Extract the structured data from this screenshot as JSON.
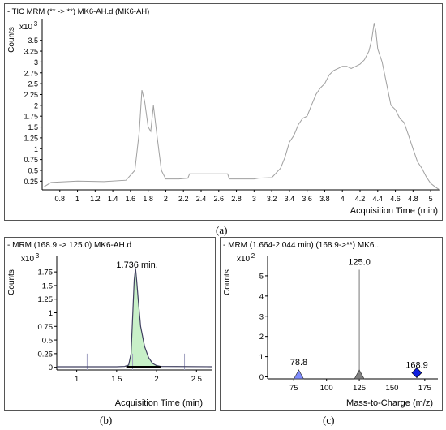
{
  "captions": {
    "a": "(a)",
    "b": "(b)",
    "c": "(c)"
  },
  "chart_data": [
    {
      "id": "a",
      "type": "line",
      "title": "- TIC MRM (** -> **) MK6-AH.d (MK6-AH)",
      "ylabel": "Counts",
      "multiplier": "x10",
      "multiplier_exp": "3",
      "xlabel": "Acquisition Time (min)",
      "xlim": [
        0.6,
        5.1
      ],
      "ylim": [
        0.05,
        4.0
      ],
      "xticks": [
        "0.8",
        "1",
        "1.2",
        "1.4",
        "1.6",
        "1.8",
        "2",
        "2.2",
        "2.4",
        "2.6",
        "2.8",
        "3",
        "3.2",
        "3.4",
        "3.6",
        "3.8",
        "4",
        "4.2",
        "4.4",
        "4.6",
        "4.8",
        "5"
      ],
      "yticks": [
        "0.25",
        "0.5",
        "0.75",
        "1",
        "1.25",
        "1.5",
        "1.75",
        "2",
        "2.25",
        "2.5",
        "2.75",
        "3",
        "3.25",
        "3.5"
      ],
      "color": "#a0a0a0",
      "x": [
        0.62,
        0.7,
        1.0,
        1.3,
        1.55,
        1.65,
        1.7,
        1.73,
        1.76,
        1.8,
        1.83,
        1.86,
        1.9,
        1.95,
        2.0,
        2.15,
        2.25,
        2.27,
        2.7,
        2.72,
        3.0,
        3.05,
        3.2,
        3.3,
        3.35,
        3.4,
        3.45,
        3.5,
        3.55,
        3.6,
        3.65,
        3.7,
        3.75,
        3.8,
        3.85,
        3.9,
        3.95,
        4.0,
        4.05,
        4.1,
        4.15,
        4.2,
        4.25,
        4.3,
        4.33,
        4.36,
        4.38,
        4.4,
        4.45,
        4.5,
        4.55,
        4.6,
        4.65,
        4.7,
        4.75,
        4.8,
        4.85,
        4.9,
        4.95,
        5.0,
        5.05,
        5.1
      ],
      "y": [
        0.12,
        0.22,
        0.25,
        0.24,
        0.27,
        0.5,
        1.4,
        2.35,
        2.1,
        1.5,
        1.4,
        2.0,
        1.3,
        0.5,
        0.3,
        0.3,
        0.32,
        0.42,
        0.42,
        0.3,
        0.3,
        0.32,
        0.33,
        0.55,
        0.8,
        1.15,
        1.3,
        1.55,
        1.7,
        1.75,
        2.0,
        2.25,
        2.4,
        2.5,
        2.7,
        2.8,
        2.85,
        2.9,
        2.9,
        2.85,
        2.9,
        2.95,
        3.05,
        3.25,
        3.5,
        3.9,
        3.7,
        3.3,
        3.0,
        2.5,
        2.0,
        1.9,
        1.7,
        1.6,
        1.3,
        1.0,
        0.7,
        0.55,
        0.35,
        0.2,
        0.12,
        0.05
      ]
    },
    {
      "id": "b",
      "type": "line",
      "title": "- MRM (168.9 -> 125.0) MK6-AH.d",
      "ylabel": "Counts",
      "multiplier": "x10",
      "multiplier_exp": "3",
      "xlabel": "Acquisition Time (min)",
      "xlim": [
        0.75,
        2.7
      ],
      "ylim": [
        -0.05,
        2.05
      ],
      "xticks": [
        "1",
        "1.5",
        "2",
        "2.5"
      ],
      "yticks": [
        "0",
        "0.25",
        "0.5",
        "0.75",
        "1",
        "1.25",
        "1.5",
        "1.75"
      ],
      "annotation": "1.736 min.",
      "peak_x": 1.736,
      "color": "#404060",
      "fill_color": "#c8f0c8",
      "x": [
        0.75,
        1.5,
        1.6,
        1.65,
        1.68,
        1.7,
        1.72,
        1.736,
        1.75,
        1.77,
        1.8,
        1.85,
        1.9,
        1.95,
        2.0,
        2.05,
        2.7
      ],
      "y": [
        0.01,
        0.01,
        0.015,
        0.04,
        0.25,
        0.9,
        1.6,
        1.82,
        1.6,
        1.25,
        0.75,
        0.38,
        0.18,
        0.07,
        0.03,
        0.015,
        0.01
      ],
      "baseline": [
        1.62,
        2.05
      ],
      "markers_x": [
        1.13,
        1.7,
        2.35
      ]
    },
    {
      "id": "c",
      "type": "bar",
      "title": "- MRM (1.664-2.044 min) (168.9->**) MK6...",
      "ylabel": "Counts",
      "multiplier": "x10",
      "multiplier_exp": "2",
      "xlabel": "Mass-to-Charge (m/z)",
      "xlim": [
        55,
        185
      ],
      "ylim": [
        -0.1,
        6.0
      ],
      "xticks": [
        "75",
        "100",
        "125",
        "150",
        "175"
      ],
      "yticks": [
        "0",
        "1",
        "2",
        "3",
        "4",
        "5"
      ],
      "bars": [
        {
          "x": 78.8,
          "value": 0.35,
          "label": "78.8",
          "marker": "triangle",
          "color": "#7f8cff"
        },
        {
          "x": 125.0,
          "value": 5.3,
          "label": "125.0",
          "marker": "triangle",
          "color": "#808080"
        },
        {
          "x": 168.9,
          "value": 0.2,
          "label": "168.9",
          "marker": "diamond",
          "color": "#1020e0"
        }
      ]
    }
  ]
}
